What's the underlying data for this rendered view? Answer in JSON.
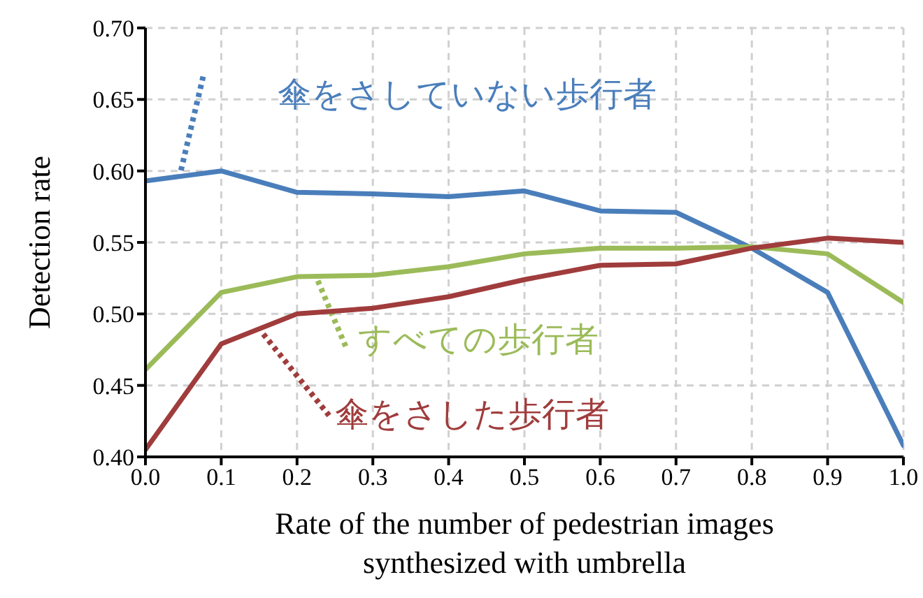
{
  "chart_data": {
    "type": "line",
    "xlabel": "Rate of the number of pedestrian images synthesized with umbrella",
    "ylabel": "Detection rate",
    "x": [
      0,
      0.1,
      0.2,
      0.3,
      0.4,
      0.5,
      0.6,
      0.7,
      0.8,
      0.9,
      1.0
    ],
    "series": [
      {
        "name": "傘をさしていない歩行者",
        "color": "#4a7ebb",
        "values": [
          0.593,
          0.6,
          0.585,
          0.584,
          0.582,
          0.586,
          0.572,
          0.571,
          0.546,
          0.515,
          0.408
        ]
      },
      {
        "name": "すべての歩行者",
        "color": "#9bbb59",
        "values": [
          0.461,
          0.515,
          0.526,
          0.527,
          0.533,
          0.542,
          0.546,
          0.546,
          0.547,
          0.542,
          0.508
        ]
      },
      {
        "name": "傘をさした歩行者",
        "color": "#a03c3c",
        "values": [
          0.405,
          0.479,
          0.5,
          0.504,
          0.512,
          0.524,
          0.534,
          0.535,
          0.546,
          0.553,
          0.55
        ]
      }
    ],
    "xlim": [
      0,
      1
    ],
    "xticks": [
      {
        "value": 0,
        "label": "0.0"
      },
      {
        "value": 0.1,
        "label": "0.1"
      },
      {
        "value": 0.2,
        "label": "0.2"
      },
      {
        "value": 0.3,
        "label": "0.3"
      },
      {
        "value": 0.4,
        "label": "0.4"
      },
      {
        "value": 0.5,
        "label": "0.5"
      },
      {
        "value": 0.6,
        "label": "0.6"
      },
      {
        "value": 0.7,
        "label": "0.7"
      },
      {
        "value": 0.8,
        "label": "0.8"
      },
      {
        "value": 0.9,
        "label": "0.9"
      },
      {
        "value": 1,
        "label": "1.0"
      }
    ],
    "ylim": [
      0.4,
      0.7
    ],
    "yticks": [
      {
        "value": 0.4,
        "label": "0.40"
      },
      {
        "value": 0.45,
        "label": "0.45"
      },
      {
        "value": 0.5,
        "label": "0.50"
      },
      {
        "value": 0.55,
        "label": "0.55"
      },
      {
        "value": 0.6,
        "label": "0.60"
      },
      {
        "value": 0.65,
        "label": "0.65"
      },
      {
        "value": 0.7,
        "label": "0.70"
      }
    ],
    "grid": true,
    "legend": false,
    "marker": "none",
    "line_style": "solid"
  }
}
